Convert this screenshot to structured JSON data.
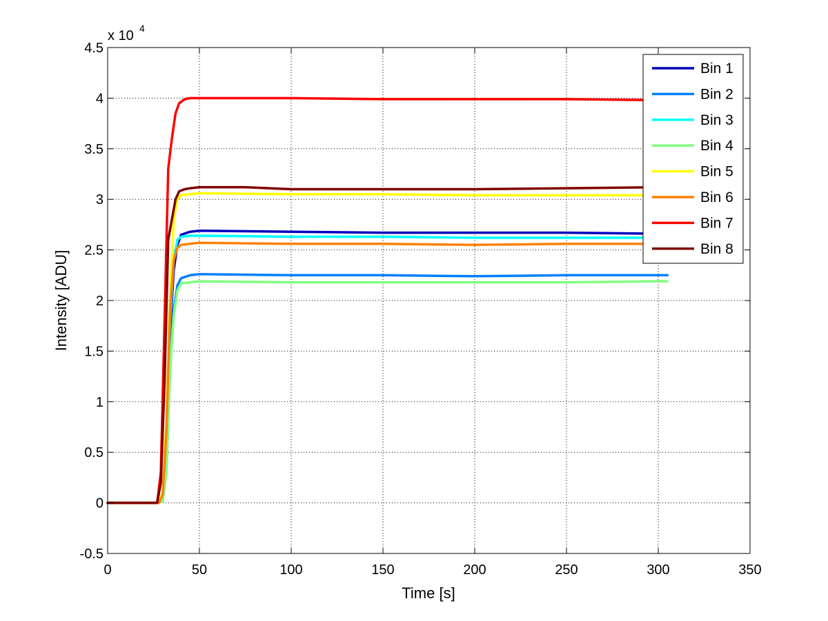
{
  "chart_data": {
    "type": "line",
    "title": "",
    "xlabel": "Time [s]",
    "ylabel": "Intensity [ADU]",
    "y_multiplier_label": {
      "prefix": "x 10",
      "exponent": "4"
    },
    "xlim": [
      0,
      350
    ],
    "ylim": [
      -0.5,
      4.5
    ],
    "x_ticks": [
      0,
      50,
      100,
      150,
      200,
      250,
      300,
      350
    ],
    "y_ticks": [
      -0.5,
      0,
      0.5,
      1,
      1.5,
      2,
      2.5,
      3,
      3.5,
      4,
      4.5
    ],
    "x_tick_labels": [
      "0",
      "50",
      "100",
      "150",
      "200",
      "250",
      "300",
      "350"
    ],
    "y_tick_labels": [
      "-0.5",
      "0",
      "0.5",
      "1",
      "1.5",
      "2",
      "2.5",
      "3",
      "3.5",
      "4",
      "4.5"
    ],
    "grid": true,
    "legend_position": "top-right",
    "series": [
      {
        "name": "Bin 1",
        "color": "#0000bf",
        "x": [
          0,
          28,
          30,
          32,
          34,
          36,
          38,
          40,
          45,
          50,
          100,
          150,
          200,
          250,
          300,
          305
        ],
        "y": [
          0,
          0,
          0.05,
          0.5,
          1.7,
          2.3,
          2.55,
          2.65,
          2.68,
          2.69,
          2.68,
          2.67,
          2.67,
          2.67,
          2.66,
          2.66
        ]
      },
      {
        "name": "Bin 2",
        "color": "#0080ff",
        "x": [
          0,
          28,
          30,
          32,
          34,
          36,
          38,
          40,
          45,
          50,
          100,
          150,
          200,
          250,
          300,
          305
        ],
        "y": [
          0,
          0,
          0.02,
          0.3,
          1.3,
          1.9,
          2.15,
          2.22,
          2.25,
          2.26,
          2.25,
          2.25,
          2.24,
          2.25,
          2.25,
          2.25
        ]
      },
      {
        "name": "Bin 3",
        "color": "#00ffff",
        "x": [
          0,
          28,
          30,
          32,
          34,
          36,
          38,
          40,
          45,
          50,
          100,
          150,
          200,
          250,
          300,
          305
        ],
        "y": [
          0,
          0,
          0.05,
          0.6,
          1.8,
          2.4,
          2.6,
          2.63,
          2.64,
          2.64,
          2.63,
          2.63,
          2.62,
          2.62,
          2.62,
          2.62
        ]
      },
      {
        "name": "Bin 4",
        "color": "#80ff80",
        "x": [
          0,
          28,
          30,
          32,
          34,
          36,
          38,
          40,
          45,
          50,
          100,
          150,
          200,
          250,
          300,
          305
        ],
        "y": [
          0,
          0,
          0.02,
          0.3,
          1.3,
          1.85,
          2.1,
          2.17,
          2.18,
          2.19,
          2.18,
          2.18,
          2.18,
          2.18,
          2.19,
          2.19
        ]
      },
      {
        "name": "Bin 5",
        "color": "#ffff00",
        "x": [
          0,
          28,
          30,
          32,
          34,
          36,
          38,
          40,
          45,
          50,
          100,
          150,
          200,
          250,
          300,
          305
        ],
        "y": [
          0,
          0,
          0.1,
          0.8,
          2.0,
          2.8,
          3.0,
          3.04,
          3.05,
          3.06,
          3.05,
          3.05,
          3.04,
          3.04,
          3.04,
          3.04
        ]
      },
      {
        "name": "Bin 6",
        "color": "#ff8000",
        "x": [
          0,
          28,
          30,
          32,
          34,
          36,
          38,
          40,
          45,
          50,
          100,
          150,
          200,
          250,
          300,
          305
        ],
        "y": [
          0,
          0,
          0.08,
          0.7,
          1.9,
          2.4,
          2.52,
          2.55,
          2.56,
          2.57,
          2.56,
          2.56,
          2.55,
          2.56,
          2.56,
          2.56
        ]
      },
      {
        "name": "Bin 7",
        "color": "#ff0000",
        "x": [
          0,
          27,
          29,
          31,
          33,
          34,
          35,
          37,
          39,
          42,
          45,
          50,
          100,
          150,
          200,
          250,
          300,
          305
        ],
        "y": [
          0,
          0,
          0.3,
          1.8,
          3.3,
          3.45,
          3.6,
          3.85,
          3.95,
          3.99,
          4.0,
          4.0,
          4.0,
          3.99,
          3.99,
          3.99,
          3.98,
          3.98
        ]
      },
      {
        "name": "Bin 8",
        "color": "#800000",
        "x": [
          0,
          27,
          29,
          31,
          33,
          35,
          37,
          39,
          42,
          45,
          50,
          75,
          100,
          150,
          200,
          250,
          300,
          305
        ],
        "y": [
          0,
          0,
          0.2,
          1.2,
          2.6,
          2.8,
          3.0,
          3.08,
          3.1,
          3.11,
          3.12,
          3.12,
          3.1,
          3.1,
          3.1,
          3.11,
          3.12,
          3.12
        ]
      }
    ]
  }
}
